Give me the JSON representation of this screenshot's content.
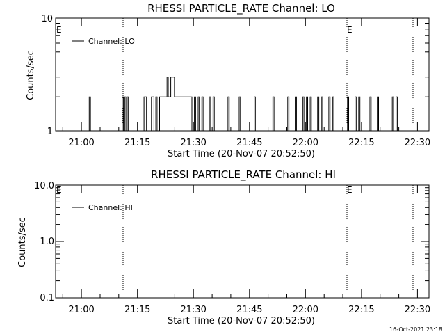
{
  "footer_timestamp": "16-Oct-2021 23:18",
  "chart_data": [
    {
      "type": "line",
      "title": "RHESSI PARTICLE_RATE Channel: LO",
      "xlabel": "Start Time (20-Nov-07 20:52:50)",
      "ylabel": "Counts/sec",
      "yscale": "log",
      "ylim": [
        1,
        10
      ],
      "xlim_minutes": [
        0,
        100
      ],
      "xtick_labels": [
        "21:00",
        "21:15",
        "21:30",
        "21:45",
        "22:00",
        "22:15",
        "22:30"
      ],
      "ytick_labels": [
        "1",
        "10"
      ],
      "legend": {
        "label": "Channel: LO",
        "position": "top-left"
      },
      "event_markers": [
        {
          "label": "E",
          "time": "20:52:50"
        },
        {
          "label": "E",
          "time": "22:11:30"
        }
      ],
      "series": [
        {
          "name": "Channel: LO",
          "x": [
            "20:52:50",
            "21:01:30",
            "21:01:50",
            "21:02:10",
            "21:10:10",
            "21:10:40",
            "21:11:00",
            "21:11:20",
            "21:11:40",
            "21:12:00",
            "21:12:20",
            "21:12:40",
            "21:16:00",
            "21:16:30",
            "21:16:50",
            "21:17:10",
            "21:18:00",
            "21:18:30",
            "21:18:50",
            "21:19:10",
            "21:19:40",
            "21:20:00",
            "21:20:40",
            "21:21:00",
            "21:22:00",
            "21:22:40",
            "21:23:00",
            "21:23:20",
            "21:23:40",
            "21:24:00",
            "21:24:40",
            "21:25:00",
            "21:29:00",
            "21:29:20",
            "21:30:00",
            "21:30:20",
            "21:31:00",
            "21:31:20",
            "21:32:00",
            "21:32:20",
            "21:34:00",
            "21:34:20",
            "21:35:00",
            "21:35:20",
            "21:39:00",
            "21:39:20",
            "21:42:00",
            "21:42:20",
            "21:46:00",
            "21:46:20",
            "21:51:00",
            "21:51:20",
            "21:55:00",
            "21:55:20",
            "21:57:00",
            "21:57:20",
            "21:59:00",
            "21:59:20",
            "22:00:00",
            "22:00:20",
            "22:01:00",
            "22:01:20",
            "22:03:00",
            "22:03:20",
            "22:04:00",
            "22:04:20",
            "22:06:00",
            "22:06:20",
            "22:07:00",
            "22:07:20",
            "22:11:00",
            "22:11:20",
            "22:13:00",
            "22:13:20",
            "22:14:00",
            "22:14:20",
            "22:17:00",
            "22:17:20",
            "22:19:00",
            "22:19:20",
            "22:23:00",
            "22:23:20",
            "22:24:00",
            "22:24:20",
            "22:25:30"
          ],
          "y": [
            1,
            1,
            2,
            1,
            1,
            2,
            1,
            2,
            1,
            2,
            1,
            1,
            1,
            2,
            2,
            1,
            1,
            2,
            2,
            1,
            2,
            1,
            2,
            2,
            2,
            3,
            2,
            2,
            3,
            3,
            2,
            2,
            2,
            1,
            2,
            1,
            2,
            1,
            2,
            1,
            2,
            1,
            2,
            1,
            2,
            1,
            2,
            1,
            2,
            1,
            2,
            1,
            2,
            1,
            2,
            1,
            2,
            1,
            2,
            1,
            2,
            1,
            2,
            1,
            2,
            1,
            2,
            1,
            2,
            1,
            2,
            1,
            2,
            1,
            2,
            1,
            2,
            1,
            2,
            1,
            2,
            1,
            2,
            1,
            1
          ]
        }
      ]
    },
    {
      "type": "line",
      "title": "RHESSI PARTICLE_RATE Channel: HI",
      "xlabel": "Start Time (20-Nov-07 20:52:50)",
      "ylabel": "Counts/sec",
      "yscale": "log",
      "ylim": [
        0.1,
        10
      ],
      "xlim_minutes": [
        0,
        100
      ],
      "xtick_labels": [
        "21:00",
        "21:15",
        "21:30",
        "21:45",
        "22:00",
        "22:15",
        "22:30"
      ],
      "ytick_labels": [
        "0.1",
        "1.0",
        "10.0"
      ],
      "legend": {
        "label": "Channel: HI",
        "position": "top-left"
      },
      "event_markers": [
        {
          "label": "E",
          "time": "20:52:50"
        },
        {
          "label": "E",
          "time": "22:11:30"
        }
      ],
      "series": [
        {
          "name": "Channel: HI",
          "x": [],
          "y": []
        }
      ]
    }
  ]
}
